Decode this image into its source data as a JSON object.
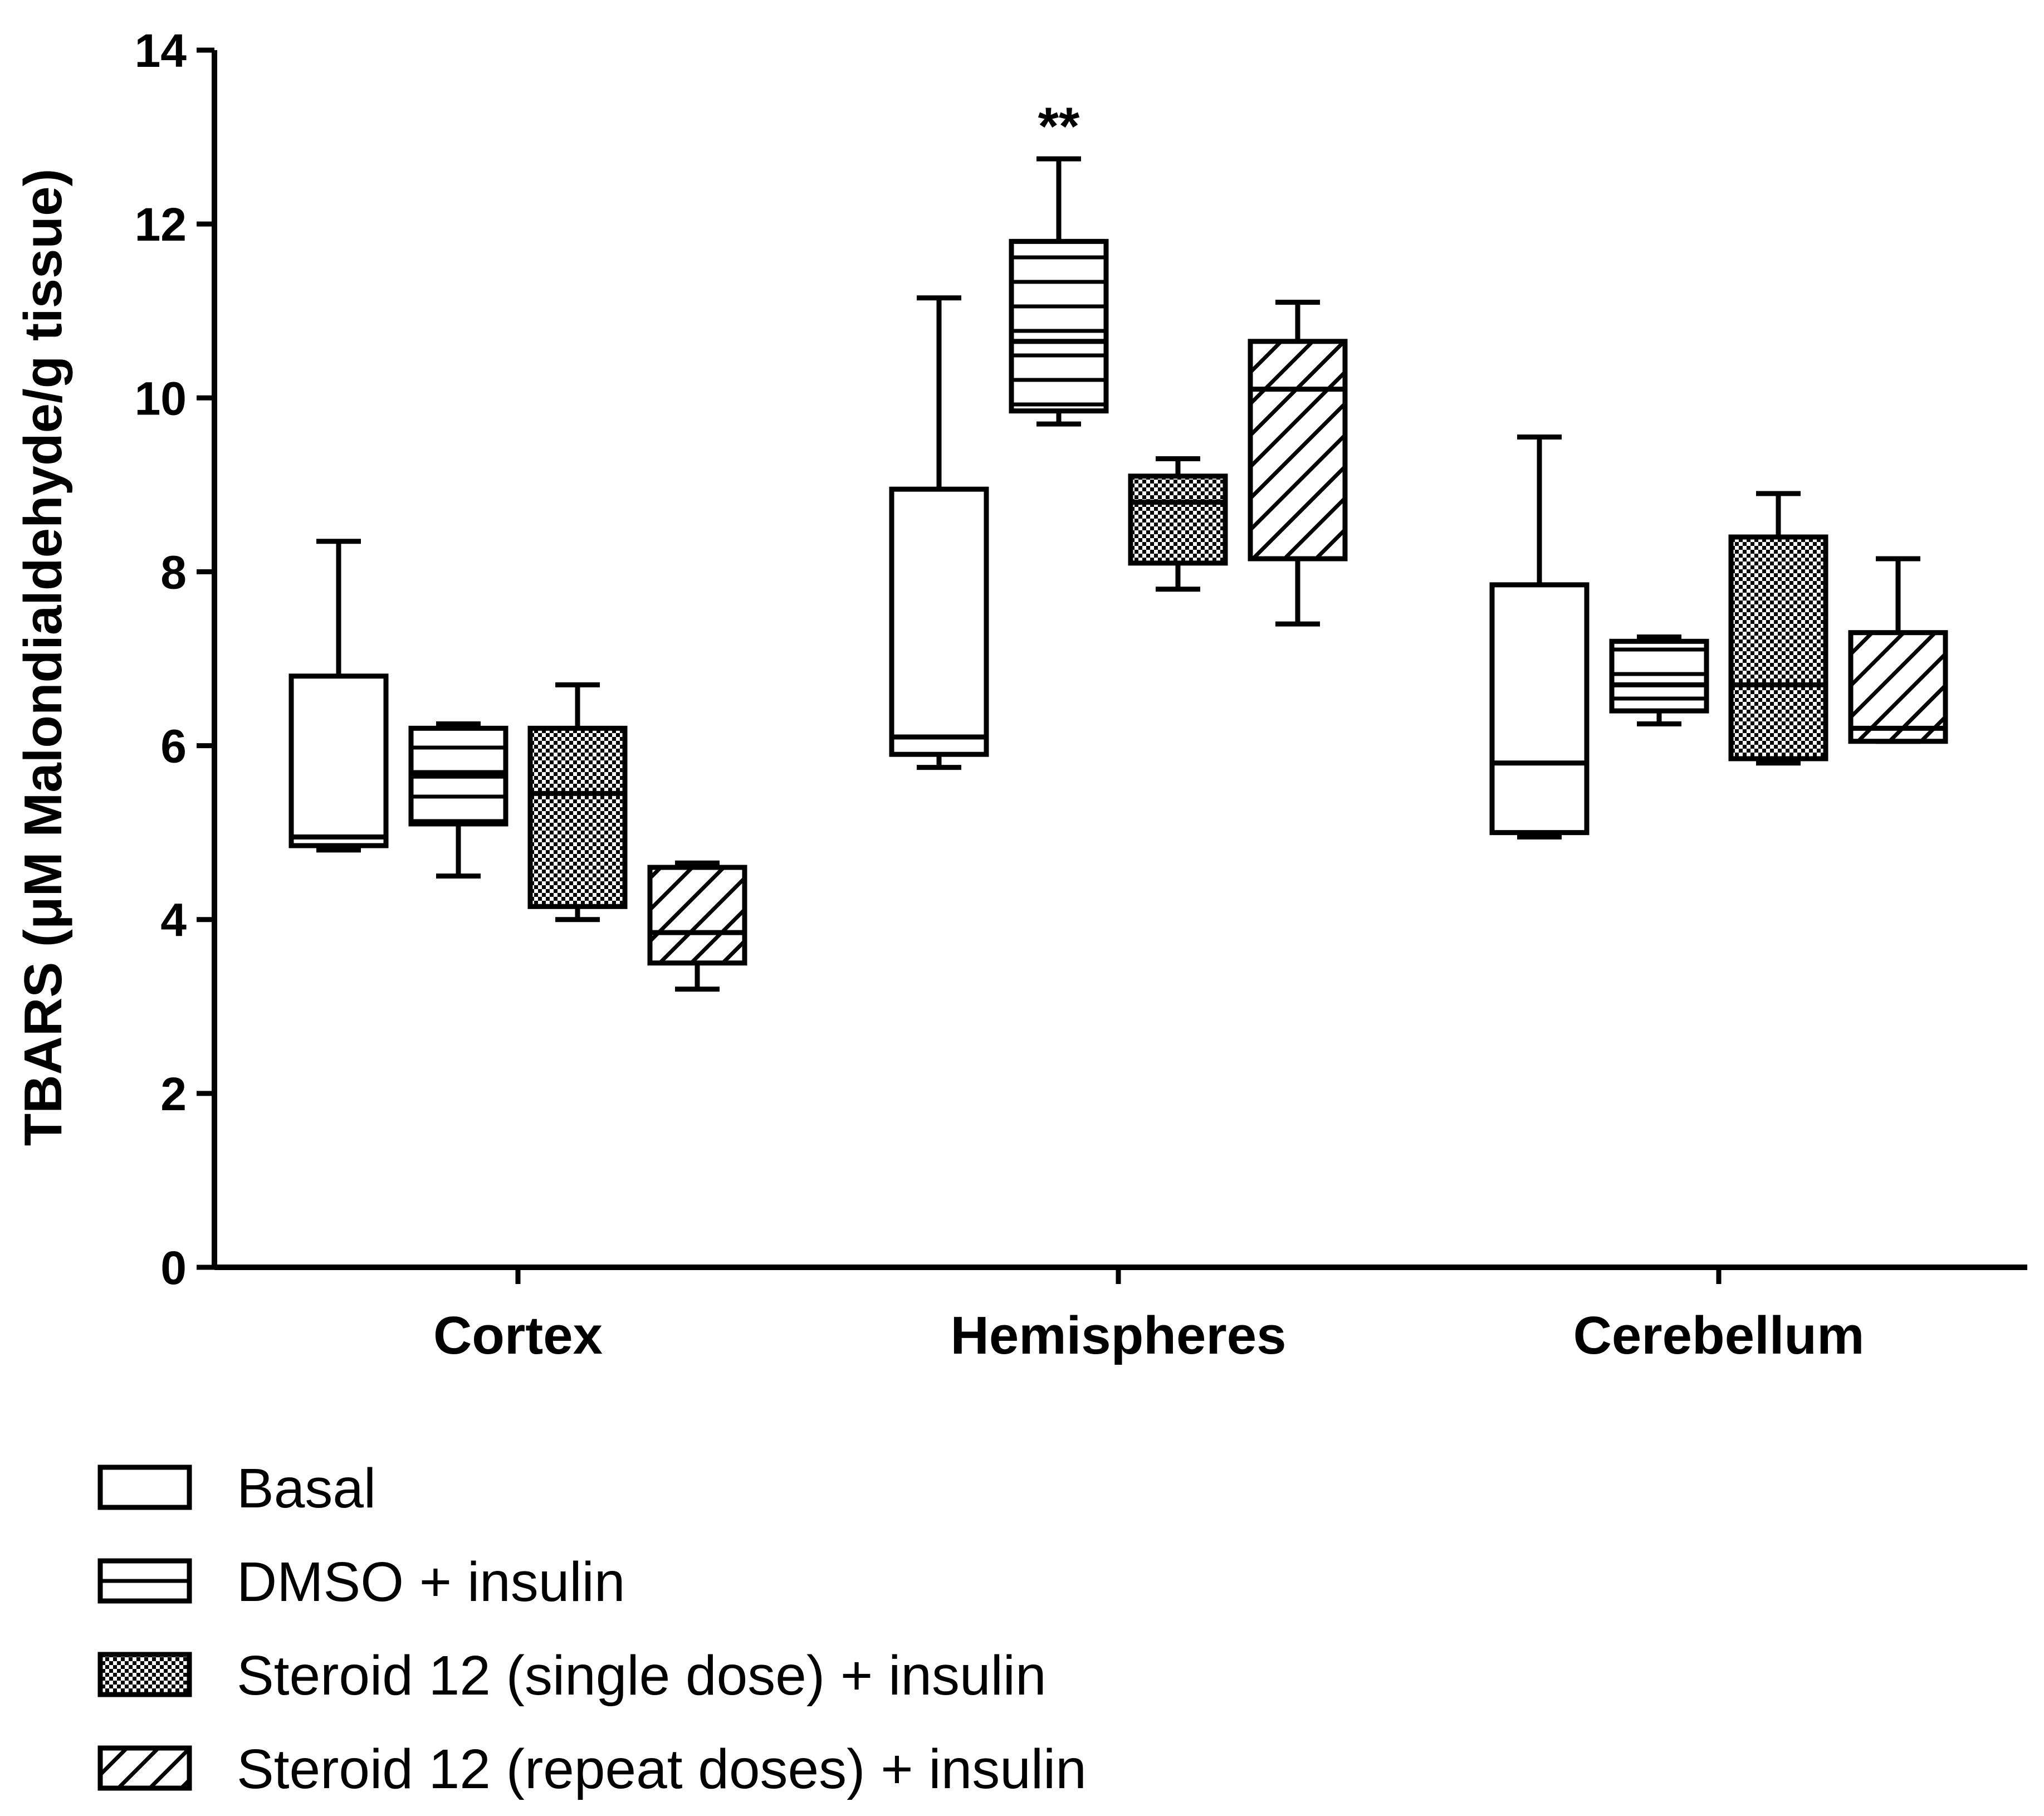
{
  "chart_data": {
    "type": "boxplot",
    "title": "",
    "xlabel": "",
    "ylabel": "TBARS (μM Malondialdehyde/g tissue)",
    "ylim": [
      0,
      14
    ],
    "yticks": [
      0,
      2,
      4,
      6,
      8,
      10,
      12,
      14
    ],
    "categories": [
      "Cortex",
      "Hemispheres",
      "Cerebellum"
    ],
    "legend_position": "bottom-left",
    "series": [
      {
        "name": "Basal",
        "pattern": "none",
        "boxes": [
          {
            "min": 4.8,
            "q1": 4.85,
            "median": 4.95,
            "q3": 6.8,
            "max": 8.35
          },
          {
            "min": 5.75,
            "q1": 5.9,
            "median": 6.1,
            "q3": 8.95,
            "max": 11.15
          },
          {
            "min": 4.95,
            "q1": 5.0,
            "median": 5.8,
            "q3": 7.85,
            "max": 9.55
          }
        ]
      },
      {
        "name": "DMSO + insulin",
        "pattern": "horizontal-lines",
        "boxes": [
          {
            "min": 4.5,
            "q1": 5.1,
            "median": 5.65,
            "q3": 6.2,
            "max": 6.25
          },
          {
            "min": 9.7,
            "q1": 9.85,
            "median": 10.65,
            "q3": 11.8,
            "max": 12.75
          },
          {
            "min": 6.25,
            "q1": 6.4,
            "median": 6.7,
            "q3": 7.2,
            "max": 7.25
          }
        ]
      },
      {
        "name": "Steroid 12 (single dose) + insulin",
        "pattern": "checker",
        "boxes": [
          {
            "min": 4.0,
            "q1": 4.15,
            "median": 5.45,
            "q3": 6.2,
            "max": 6.7
          },
          {
            "min": 7.8,
            "q1": 8.1,
            "median": 8.8,
            "q3": 9.1,
            "max": 9.3
          },
          {
            "min": 5.8,
            "q1": 5.85,
            "median": 6.7,
            "q3": 8.4,
            "max": 8.9
          }
        ]
      },
      {
        "name": "Steroid 12 (repeat doses) + insulin",
        "pattern": "diagonal-lines",
        "boxes": [
          {
            "min": 3.2,
            "q1": 3.5,
            "median": 3.85,
            "q3": 4.6,
            "max": 4.65
          },
          {
            "min": 7.4,
            "q1": 8.15,
            "median": 10.1,
            "q3": 10.65,
            "max": 11.1
          },
          {
            "min": 6.05,
            "q1": 6.05,
            "median": 6.2,
            "q3": 7.3,
            "max": 8.15
          }
        ]
      }
    ],
    "annotations": [
      {
        "text": "**",
        "category": "Hemispheres",
        "series": "DMSO + insulin",
        "y": 13.3
      }
    ]
  }
}
